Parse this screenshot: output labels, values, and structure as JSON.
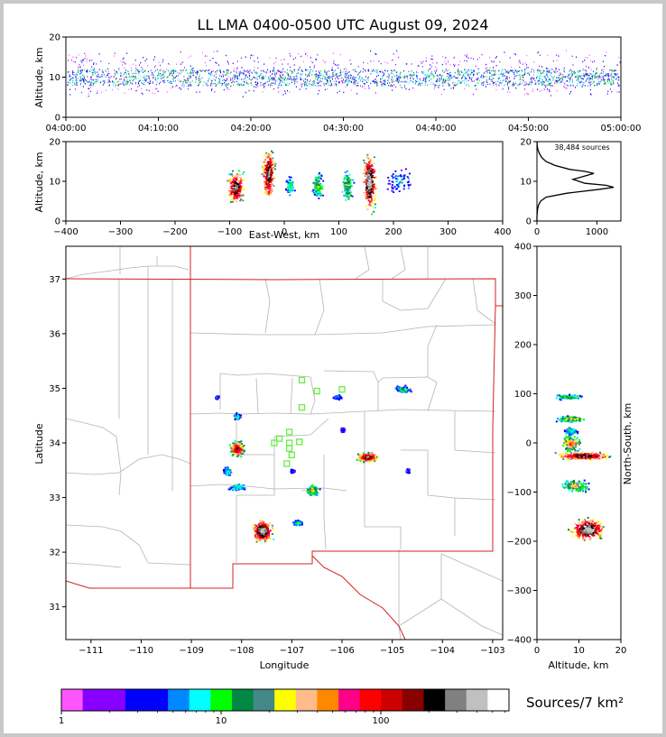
{
  "chart_data": [
    {
      "id": "time_altitude",
      "type": "scatter",
      "title": "LL LMA 0400-0500 UTC August 09, 2024",
      "xlabel": "",
      "ylabel": "Altitude, km",
      "x_ticks": [
        "04:00:00",
        "04:10:00",
        "04:20:00",
        "04:30:00",
        "04:40:00",
        "04:50:00",
        "05:00:00"
      ],
      "xlim": [
        "04:00:00",
        "05:00:00"
      ],
      "ylim": [
        0,
        20
      ],
      "y_ticks": [
        0,
        10,
        20
      ],
      "altitude_band_km": [
        6,
        16
      ],
      "core_altitude_km": [
        8,
        12
      ]
    },
    {
      "id": "ew_altitude",
      "type": "heatmap",
      "xlabel": "East-West, km",
      "ylabel": "Altitude, km",
      "xlim": [
        -400,
        400
      ],
      "x_ticks": [
        -400,
        -300,
        -200,
        -100,
        0,
        100,
        200,
        300,
        400
      ],
      "ylim": [
        0,
        20
      ],
      "y_ticks": [
        0,
        10,
        20
      ],
      "clusters": [
        {
          "x": -90,
          "z": 8.5,
          "w": 40,
          "h": 10,
          "density": 0.9
        },
        {
          "x": -30,
          "z": 12,
          "w": 30,
          "h": 16,
          "density": 0.9
        },
        {
          "x": 10,
          "z": 9,
          "w": 20,
          "h": 6,
          "density": 0.3
        },
        {
          "x": 60,
          "z": 9,
          "w": 25,
          "h": 8,
          "density": 0.4
        },
        {
          "x": 115,
          "z": 9,
          "w": 25,
          "h": 10,
          "density": 0.4
        },
        {
          "x": 155,
          "z": 10,
          "w": 30,
          "h": 18,
          "density": 1.0
        },
        {
          "x": 210,
          "z": 10,
          "w": 60,
          "h": 8,
          "density": 0.2
        }
      ]
    },
    {
      "id": "altitude_histogram",
      "type": "line",
      "annotation": "38,484 sources",
      "xlim": [
        0,
        1400
      ],
      "x_ticks": [
        0,
        1000
      ],
      "ylim": [
        0,
        20
      ],
      "y_ticks": [
        0,
        10,
        20
      ],
      "altitude_km": [
        0,
        1,
        2,
        3,
        4,
        5,
        6,
        7,
        8,
        8.5,
        9,
        9.5,
        10,
        10.5,
        11,
        12,
        12.5,
        13,
        14,
        15,
        16,
        17,
        18,
        19,
        20
      ],
      "sources": [
        0,
        0,
        5,
        10,
        25,
        60,
        150,
        500,
        1050,
        1280,
        1150,
        800,
        700,
        600,
        720,
        950,
        800,
        550,
        300,
        150,
        80,
        40,
        15,
        5,
        0
      ]
    },
    {
      "id": "plan_view",
      "type": "heatmap",
      "xlabel": "Longitude",
      "ylabel": "Latitude",
      "xlim": [
        -111.5,
        -102.8
      ],
      "x_ticks": [
        -111,
        -110,
        -109,
        -108,
        -107,
        -106,
        -105,
        -104,
        -103
      ],
      "ylim": [
        30.4,
        37.6
      ],
      "y_ticks": [
        31,
        32,
        33,
        34,
        35,
        36,
        37
      ],
      "state_boundary_color": "#d42020",
      "county_line_color": "#b4b4b4",
      "stations_color": "#66ee44",
      "stations": [
        [
          -106.8,
          35.15
        ],
        [
          -106.5,
          34.95
        ],
        [
          -106.0,
          34.98
        ],
        [
          -106.8,
          34.65
        ],
        [
          -107.05,
          34.2
        ],
        [
          -107.25,
          34.08
        ],
        [
          -107.05,
          34.0
        ],
        [
          -106.85,
          34.02
        ],
        [
          -107.35,
          34.0
        ],
        [
          -107.05,
          33.9
        ],
        [
          -107.0,
          33.78
        ],
        [
          -107.1,
          33.62
        ]
      ],
      "clusters": [
        {
          "lon": -107.6,
          "lat": 32.4,
          "w": 0.5,
          "h": 0.5,
          "density": 1.0
        },
        {
          "lon": -108.1,
          "lat": 33.9,
          "w": 0.35,
          "h": 0.35,
          "density": 0.8
        },
        {
          "lon": -105.5,
          "lat": 33.75,
          "w": 0.5,
          "h": 0.2,
          "density": 0.9
        },
        {
          "lon": -106.6,
          "lat": 33.15,
          "w": 0.3,
          "h": 0.25,
          "density": 0.5
        },
        {
          "lon": -108.3,
          "lat": 33.5,
          "w": 0.2,
          "h": 0.2,
          "density": 0.3
        },
        {
          "lon": -108.1,
          "lat": 33.2,
          "w": 0.4,
          "h": 0.15,
          "density": 0.3
        },
        {
          "lon": -108.1,
          "lat": 34.5,
          "w": 0.15,
          "h": 0.15,
          "density": 0.3
        },
        {
          "lon": -106.9,
          "lat": 32.55,
          "w": 0.2,
          "h": 0.12,
          "density": 0.3
        },
        {
          "lon": -104.8,
          "lat": 35.0,
          "w": 0.4,
          "h": 0.15,
          "density": 0.3
        },
        {
          "lon": -106.1,
          "lat": 34.85,
          "w": 0.2,
          "h": 0.1,
          "density": 0.2
        },
        {
          "lon": -104.7,
          "lat": 33.5,
          "w": 0.1,
          "h": 0.1,
          "density": 0.15
        },
        {
          "lon": -108.5,
          "lat": 34.85,
          "w": 0.1,
          "h": 0.1,
          "density": 0.15
        },
        {
          "lon": -106.0,
          "lat": 34.25,
          "w": 0.1,
          "h": 0.1,
          "density": 0.15
        },
        {
          "lon": -107.0,
          "lat": 33.5,
          "w": 0.1,
          "h": 0.1,
          "density": 0.15
        }
      ]
    },
    {
      "id": "altitude_ns",
      "type": "heatmap",
      "xlabel": "Altitude, km",
      "ylabel": "North-South, km",
      "xlim": [
        0,
        20
      ],
      "x_ticks": [
        0,
        10,
        20
      ],
      "ylim": [
        -400,
        400
      ],
      "y_ticks": [
        -400,
        -300,
        -200,
        -100,
        0,
        100,
        200,
        300,
        400
      ],
      "clusters": [
        {
          "z": 12,
          "y": -175,
          "w": 10,
          "h": 55,
          "density": 1.0
        },
        {
          "z": 11,
          "y": -25,
          "w": 16,
          "h": 20,
          "density": 0.9
        },
        {
          "z": 8,
          "y": 0,
          "w": 6,
          "h": 40,
          "density": 0.6
        },
        {
          "z": 9,
          "y": -85,
          "w": 8,
          "h": 30,
          "density": 0.5
        },
        {
          "z": 8,
          "y": 50,
          "w": 8,
          "h": 15,
          "density": 0.5
        },
        {
          "z": 7,
          "y": 95,
          "w": 8,
          "h": 12,
          "density": 0.4
        },
        {
          "z": 8,
          "y": 25,
          "w": 4,
          "h": 20,
          "density": 0.3
        }
      ]
    }
  ],
  "colorbar": {
    "label": "Sources/7 km²",
    "tick_labels": [
      "1",
      "10",
      "100"
    ],
    "colors": [
      "#ff55ff",
      "#8800ff",
      "#8800ff",
      "#0000ff",
      "#0000ff",
      "#0088ff",
      "#00ffff",
      "#00ff00",
      "#008844",
      "#448888",
      "#ffff00",
      "#ffbb88",
      "#ff8800",
      "#ff0088",
      "#ff0000",
      "#cc0000",
      "#880000",
      "#000000",
      "#808080",
      "#c0c0c0",
      "#ffffff"
    ]
  }
}
